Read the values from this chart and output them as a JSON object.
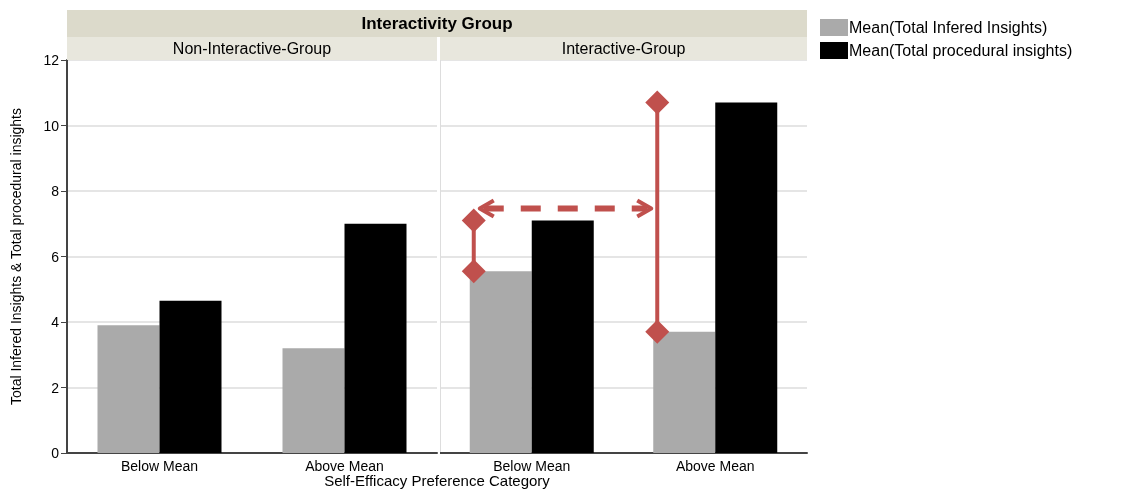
{
  "chart_data": [
    {
      "type": "bar",
      "title": "Non-Interactive-Group",
      "annotations": [
        "Interactivity Group"
      ],
      "xlabel": "Self-Efficacy Preference Category",
      "ylabel": "Total Infered Insights & Total procedural insights",
      "categories": [
        "Below Mean",
        "Above Mean"
      ],
      "series": [
        {
          "color": "#aaaaaa",
          "values": [
            3.9,
            3.2
          ]
        },
        {
          "color": "#000000",
          "values": [
            4.65,
            7.0
          ]
        }
      ],
      "ylim": [
        0,
        12
      ],
      "yticks": [
        0,
        2,
        4,
        6,
        8,
        10,
        12
      ],
      "grid": "y"
    },
    {
      "type": "bar",
      "title": "Interactive-Group",
      "categories": [
        "Below Mean",
        "Above Mean"
      ],
      "series": [
        {
          "name": "Mean(Total Infered Insights)",
          "color": "#aaaaaa",
          "values": [
            5.55,
            3.7
          ]
        },
        {
          "name": "Mean(Total procedural insights)",
          "color": "#000000",
          "values": [
            7.1,
            10.7
          ]
        }
      ],
      "ylim": [
        0,
        12
      ],
      "yticks": [
        0,
        2,
        4,
        6,
        8,
        10,
        12
      ],
      "grid": "y",
      "tick_labels": "x",
      "legend": "right"
    }
  ]
}
